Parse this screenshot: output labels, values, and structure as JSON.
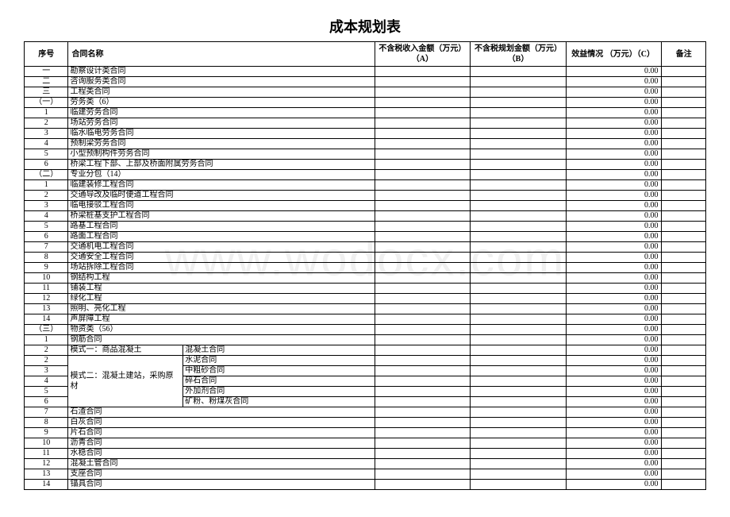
{
  "watermark": "www.wodocx.com",
  "title": "成本规划表",
  "headers": {
    "seq": "序号",
    "name": "合同名称",
    "col_a": "不含税收入金额（万元）\n（A）",
    "col_b": "不含税规划金额（万元）\n（B）",
    "col_c": "效益情况\n（万元）（C）",
    "remark": "备注"
  },
  "rows": [
    {
      "seq": "一",
      "name": "勘察设计类合同",
      "c": "0.00"
    },
    {
      "seq": "二",
      "name": "咨询服务类合同",
      "c": "0.00"
    },
    {
      "seq": "三",
      "name": "工程类合同",
      "c": "0.00"
    },
    {
      "seq": "（一）",
      "name": "劳务类（6）",
      "c": "0.00"
    },
    {
      "seq": "1",
      "name": "临建劳务合同",
      "c": "0.00"
    },
    {
      "seq": "2",
      "name": "场站劳务合同",
      "c": "0.00"
    },
    {
      "seq": "3",
      "name": "临水临电劳务合同",
      "c": "0.00"
    },
    {
      "seq": "4",
      "name": "预制梁劳务合同",
      "c": "0.00"
    },
    {
      "seq": "5",
      "name": "小型预制构件劳务合同",
      "c": "0.00"
    },
    {
      "seq": "6",
      "name": "桥梁工程下部、上部及桥面附属劳务合同",
      "c": "0.00"
    },
    {
      "seq": "（二）",
      "name": "专业分包（14）",
      "c": "0.00"
    },
    {
      "seq": "1",
      "name": "临建装修工程合同",
      "c": "0.00"
    },
    {
      "seq": "2",
      "name": "交通导改及临时便道工程合同",
      "c": "0.00"
    },
    {
      "seq": "3",
      "name": "临电接驳工程合同",
      "c": "0.00"
    },
    {
      "seq": "4",
      "name": "桥梁桩基支护工程合同",
      "c": "0.00"
    },
    {
      "seq": "5",
      "name": "路基工程合同",
      "c": "0.00"
    },
    {
      "seq": "6",
      "name": "路面工程合同",
      "c": "0.00"
    },
    {
      "seq": "7",
      "name": "交通机电工程合同",
      "c": "0.00"
    },
    {
      "seq": "8",
      "name": "交通安全工程合同",
      "c": "0.00"
    },
    {
      "seq": "9",
      "name": "场站拆除工程合同",
      "c": "0.00"
    },
    {
      "seq": "10",
      "name": "钢结构工程",
      "c": "0.00"
    },
    {
      "seq": "11",
      "name": "铺装工程",
      "c": "0.00"
    },
    {
      "seq": "12",
      "name": "绿化工程",
      "c": "0.00"
    },
    {
      "seq": "13",
      "name": "照明、亮化工程",
      "c": "0.00"
    },
    {
      "seq": "14",
      "name": "声屏障工程",
      "c": "0.00"
    },
    {
      "seq": "（三）",
      "name": "物资类（56）",
      "c": "0.00"
    },
    {
      "seq": "1",
      "name": "钢筋合同",
      "c": "0.00"
    }
  ],
  "concrete": {
    "mode1_label": "模式一：商品混凝土",
    "mode1_item": "混凝土合同",
    "mode2_label": "模式二：混凝土建站，采购原材",
    "mode2_items": [
      "水泥合同",
      "中粗砂合同",
      "碎石合同",
      "外加剂合同",
      "矿粉、粉煤灰合同"
    ]
  },
  "concrete_rows": [
    {
      "seq": "2",
      "c": "0.00"
    },
    {
      "seq": "2",
      "c": "0.00"
    },
    {
      "seq": "3",
      "c": "0.00"
    },
    {
      "seq": "4",
      "c": "0.00"
    },
    {
      "seq": "5",
      "c": "0.00"
    },
    {
      "seq": "6",
      "c": "0.00"
    }
  ],
  "tail_rows": [
    {
      "seq": "7",
      "name": "石渣合同",
      "c": "0.00"
    },
    {
      "seq": "8",
      "name": "白灰合同",
      "c": "0.00"
    },
    {
      "seq": "9",
      "name": "片石合同",
      "c": "0.00"
    },
    {
      "seq": "10",
      "name": "沥青合同",
      "c": "0.00"
    },
    {
      "seq": "11",
      "name": "水稳合同",
      "c": "0.00"
    },
    {
      "seq": "12",
      "name": "混凝土管合同",
      "c": "0.00"
    },
    {
      "seq": "13",
      "name": "支座合同",
      "c": "0.00"
    },
    {
      "seq": "14",
      "name": "锚具合同",
      "c": "0.00"
    }
  ]
}
